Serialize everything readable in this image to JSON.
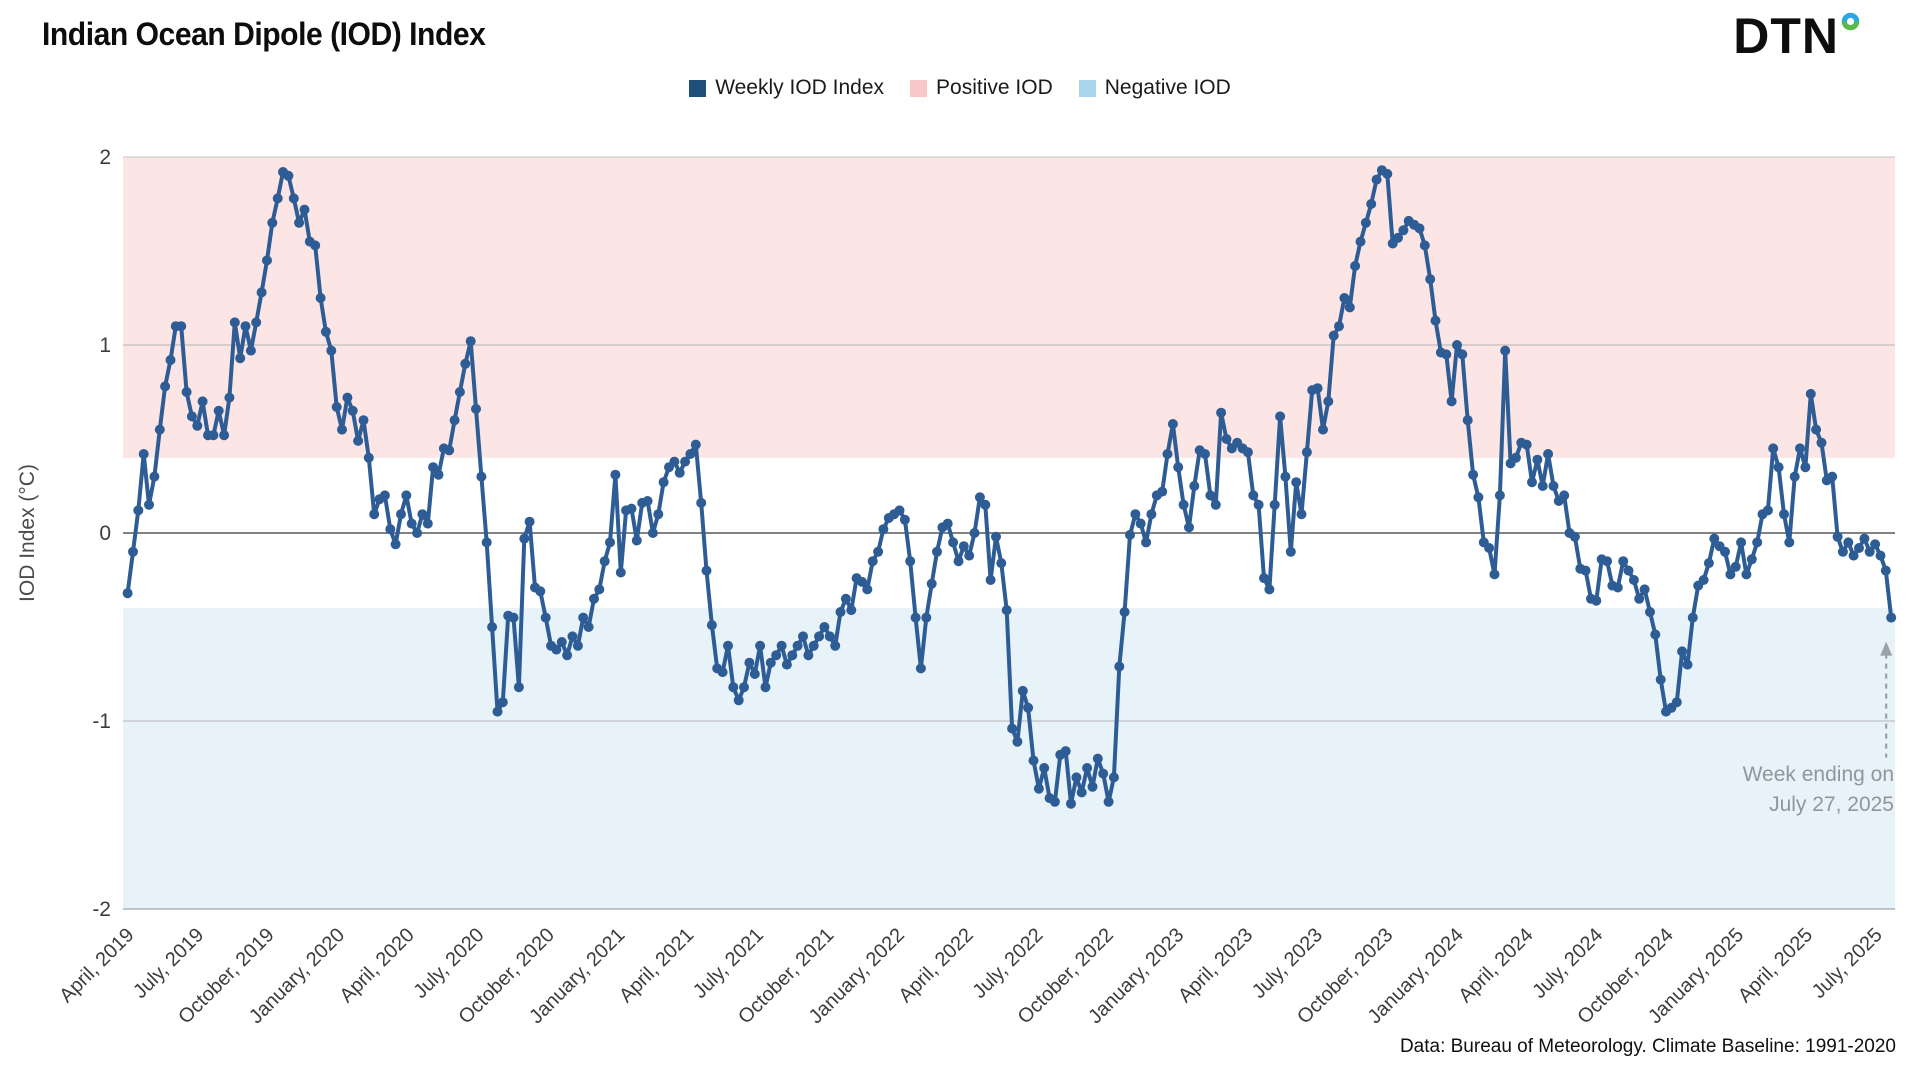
{
  "header": {
    "title": "Indian Ocean Dipole (IOD) Index",
    "logo_text": "DTN"
  },
  "legend": [
    {
      "label": "Weekly IOD Index",
      "swatch_color": "#1f4e79",
      "shape": "square"
    },
    {
      "label": "Positive IOD",
      "swatch_color": "#f9c7c7",
      "shape": "square"
    },
    {
      "label": "Negative IOD",
      "swatch_color": "#a9d5ec",
      "shape": "square"
    }
  ],
  "annotation": {
    "line1": "Week ending on",
    "line2": "July 27, 2025"
  },
  "source_note": "Data: Bureau of Meteorology. Climate Baseline: 1991-2020",
  "colors": {
    "line": "#2e5c94",
    "positive_band": "#fce5e5",
    "negative_band": "#e7f2f9",
    "grid": "#b5b5b5",
    "top_grid": "#c4c4c4",
    "zero_line": "#58595b",
    "bottom_line": "#8f8f8f",
    "axis_text": "#3d3d3d",
    "annotation_gray": "#9aa1a7",
    "logo_blue": "#2da7df",
    "logo_green": "#58b947"
  },
  "chart_data": {
    "type": "line",
    "title": "Indian Ocean Dipole (IOD) Index",
    "series_name": "Weekly IOD Index",
    "cadence": "weekly",
    "first_week_ending": "April 7, 2019",
    "last_week_ending": "July 27, 2025",
    "ylabel": "IOD Index (°C)",
    "ylim": [
      -2,
      2
    ],
    "y_tick_labels": [
      "2",
      "1",
      "0",
      "-1",
      "-2"
    ],
    "y_tick_values": [
      2,
      1,
      0,
      -1,
      -2
    ],
    "positive_iod_threshold": 0.4,
    "negative_iod_threshold": -0.4,
    "x_tick_labels": [
      "April, 2019",
      "July, 2019",
      "October, 2019",
      "January, 2020",
      "April, 2020",
      "July, 2020",
      "October, 2020",
      "January, 2021",
      "April, 2021",
      "July, 2021",
      "October, 2021",
      "January, 2022",
      "April, 2022",
      "July, 2022",
      "October, 2022",
      "January, 2023",
      "April, 2023",
      "July, 2023",
      "October, 2023",
      "January, 2024",
      "April, 2024",
      "July, 2024",
      "October, 2024",
      "January, 2025",
      "April, 2025",
      "July, 2025"
    ],
    "values": [
      -0.32,
      -0.1,
      0.12,
      0.42,
      0.15,
      0.3,
      0.55,
      0.78,
      0.92,
      1.1,
      1.1,
      0.75,
      0.62,
      0.57,
      0.7,
      0.52,
      0.52,
      0.65,
      0.52,
      0.72,
      1.12,
      0.93,
      1.1,
      0.97,
      1.12,
      1.28,
      1.45,
      1.65,
      1.78,
      1.92,
      1.9,
      1.78,
      1.65,
      1.72,
      1.55,
      1.53,
      1.25,
      1.07,
      0.97,
      0.67,
      0.55,
      0.72,
      0.65,
      0.49,
      0.6,
      0.4,
      0.1,
      0.18,
      0.2,
      0.02,
      -0.06,
      0.1,
      0.2,
      0.05,
      0.0,
      0.1,
      0.05,
      0.35,
      0.31,
      0.45,
      0.44,
      0.6,
      0.75,
      0.9,
      1.02,
      0.66,
      0.3,
      -0.05,
      -0.5,
      -0.95,
      -0.9,
      -0.44,
      -0.45,
      -0.82,
      -0.03,
      0.06,
      -0.29,
      -0.31,
      -0.45,
      -0.6,
      -0.62,
      -0.58,
      -0.65,
      -0.55,
      -0.6,
      -0.45,
      -0.5,
      -0.35,
      -0.3,
      -0.15,
      -0.05,
      0.31,
      -0.21,
      0.12,
      0.13,
      -0.04,
      0.16,
      0.17,
      0.0,
      0.1,
      0.27,
      0.35,
      0.38,
      0.32,
      0.38,
      0.42,
      0.47,
      0.16,
      -0.2,
      -0.49,
      -0.72,
      -0.74,
      -0.6,
      -0.82,
      -0.89,
      -0.82,
      -0.69,
      -0.75,
      -0.6,
      -0.82,
      -0.69,
      -0.65,
      -0.6,
      -0.7,
      -0.65,
      -0.6,
      -0.55,
      -0.65,
      -0.6,
      -0.55,
      -0.5,
      -0.55,
      -0.6,
      -0.42,
      -0.35,
      -0.41,
      -0.24,
      -0.26,
      -0.3,
      -0.15,
      -0.1,
      0.02,
      0.08,
      0.1,
      0.12,
      0.07,
      -0.15,
      -0.45,
      -0.72,
      -0.45,
      -0.27,
      -0.1,
      0.03,
      0.05,
      -0.05,
      -0.15,
      -0.07,
      -0.12,
      0.0,
      0.19,
      0.15,
      -0.25,
      -0.02,
      -0.16,
      -0.41,
      -1.04,
      -1.11,
      -0.84,
      -0.93,
      -1.21,
      -1.36,
      -1.25,
      -1.41,
      -1.43,
      -1.18,
      -1.16,
      -1.44,
      -1.3,
      -1.38,
      -1.25,
      -1.35,
      -1.2,
      -1.28,
      -1.43,
      -1.3,
      -0.71,
      -0.42,
      -0.01,
      0.1,
      0.05,
      -0.05,
      0.1,
      0.2,
      0.22,
      0.42,
      0.58,
      0.35,
      0.15,
      0.03,
      0.25,
      0.44,
      0.42,
      0.2,
      0.15,
      0.64,
      0.5,
      0.45,
      0.48,
      0.45,
      0.43,
      0.2,
      0.15,
      -0.24,
      -0.3,
      0.15,
      0.62,
      0.3,
      -0.1,
      0.27,
      0.1,
      0.43,
      0.76,
      0.77,
      0.55,
      0.7,
      1.05,
      1.1,
      1.25,
      1.2,
      1.42,
      1.55,
      1.65,
      1.75,
      1.88,
      1.93,
      1.91,
      1.54,
      1.57,
      1.61,
      1.66,
      1.64,
      1.62,
      1.53,
      1.35,
      1.13,
      0.96,
      0.95,
      0.7,
      1.0,
      0.95,
      0.6,
      0.31,
      0.19,
      -0.05,
      -0.08,
      -0.22,
      0.2,
      0.97,
      0.37,
      0.4,
      0.48,
      0.47,
      0.27,
      0.39,
      0.25,
      0.42,
      0.25,
      0.17,
      0.2,
      0.0,
      -0.02,
      -0.19,
      -0.2,
      -0.35,
      -0.36,
      -0.14,
      -0.15,
      -0.28,
      -0.29,
      -0.15,
      -0.2,
      -0.25,
      -0.35,
      -0.3,
      -0.42,
      -0.54,
      -0.78,
      -0.95,
      -0.93,
      -0.9,
      -0.63,
      -0.7,
      -0.45,
      -0.28,
      -0.25,
      -0.16,
      -0.03,
      -0.07,
      -0.1,
      -0.22,
      -0.18,
      -0.05,
      -0.22,
      -0.14,
      -0.05,
      0.1,
      0.12,
      0.45,
      0.35,
      0.1,
      -0.05,
      0.3,
      0.45,
      0.35,
      0.74,
      0.55,
      0.48,
      0.28,
      0.3,
      -0.02,
      -0.1,
      -0.05,
      -0.12,
      -0.08,
      -0.03,
      -0.1,
      -0.06,
      -0.12,
      -0.2,
      -0.45
    ]
  }
}
